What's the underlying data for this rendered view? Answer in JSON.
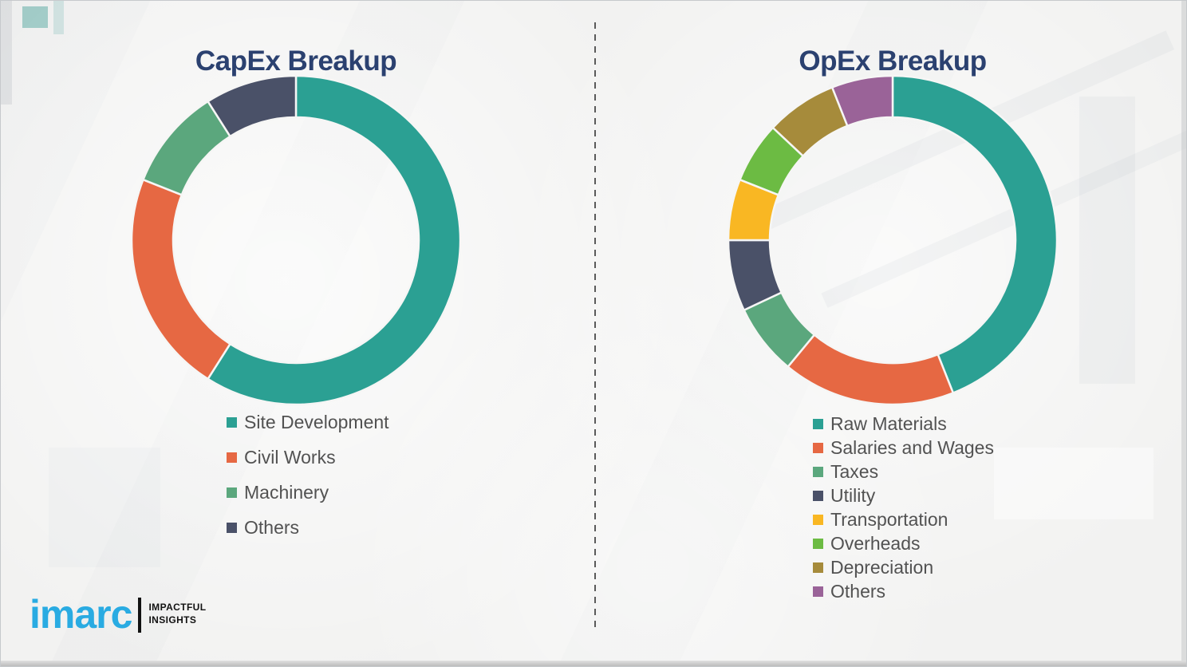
{
  "chart_data": [
    {
      "type": "pie",
      "shape": "donut",
      "title": "CapEx Breakup",
      "categories": [
        "Site Development",
        "Civil Works",
        "Machinery",
        "Others"
      ],
      "values": [
        59,
        22,
        10,
        9
      ],
      "unit": "percent",
      "colors": [
        "#2BA093",
        "#E66843",
        "#5BA77D",
        "#4A5168"
      ],
      "start_angle_deg": 0,
      "direction": "clockwise",
      "legend_position": "below-left",
      "data_labels": false
    },
    {
      "type": "pie",
      "shape": "donut",
      "title": "OpEx Breakup",
      "categories": [
        "Raw Materials",
        "Salaries and Wages",
        "Taxes",
        "Utility",
        "Transportation",
        "Overheads",
        "Depreciation",
        "Others"
      ],
      "values": [
        44,
        17,
        7,
        7,
        6,
        6,
        7,
        6
      ],
      "unit": "percent",
      "colors": [
        "#2BA093",
        "#E66843",
        "#5BA77D",
        "#4A5168",
        "#F9B723",
        "#6CBB43",
        "#A68B3B",
        "#9A6398"
      ],
      "start_angle_deg": 0,
      "direction": "clockwise",
      "legend_position": "below-left",
      "data_labels": false
    }
  ],
  "logo": {
    "brand": "imarc",
    "tagline": [
      "IMPACTFUL",
      "INSIGHTS"
    ],
    "brand_color": "#29ABE2",
    "tagline_color": "#121212"
  },
  "style": {
    "title_color": "#2B4170",
    "legend_text_color": "#525252",
    "background_color": "#F2F2F1"
  }
}
